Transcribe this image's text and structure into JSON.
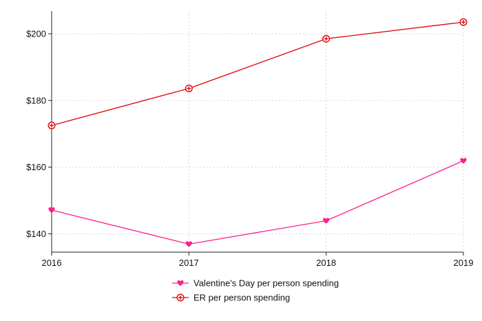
{
  "chart_data": {
    "type": "line",
    "x": [
      "2016",
      "2017",
      "2018",
      "2019"
    ],
    "series": [
      {
        "name": "Valentine's Day per person spending",
        "values": [
          147.1,
          136.9,
          143.9,
          161.9
        ],
        "color": "#ff1d8e",
        "marker": "heart"
      },
      {
        "name": "ER per person spending",
        "values": [
          172.5,
          183.6,
          198.5,
          203.5
        ],
        "color": "#e00000",
        "marker": "circle-plus"
      }
    ],
    "y_ticks": [
      "$140",
      "$160",
      "$180",
      "$200"
    ],
    "y_tick_values": [
      140,
      160,
      180,
      200
    ],
    "ylim": [
      134.5,
      206
    ],
    "grid": true,
    "legend_position": "bottom",
    "title": "",
    "xlabel": "",
    "ylabel": ""
  }
}
